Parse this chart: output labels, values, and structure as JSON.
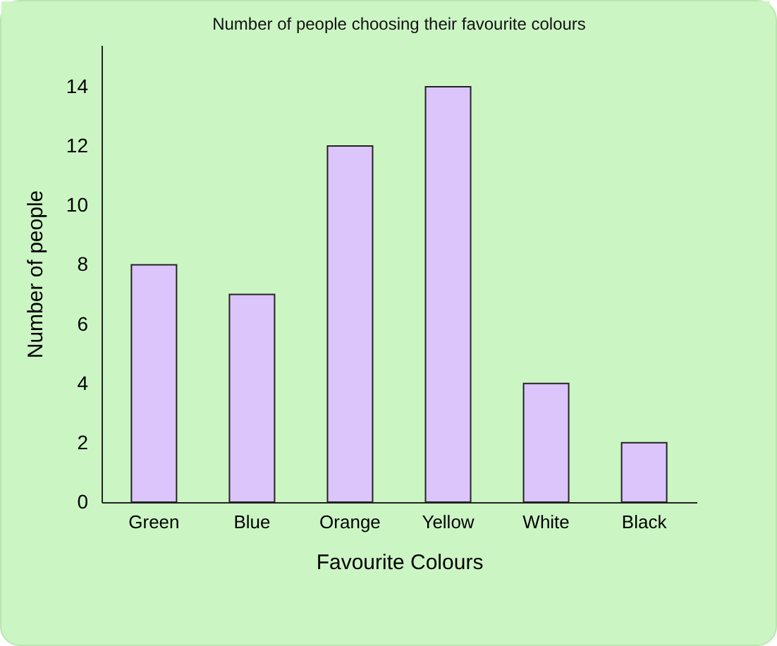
{
  "chart_data": {
    "type": "bar",
    "title": "Number of people choosing their favourite colours",
    "xlabel": "Favourite Colours",
    "ylabel": "Number of people",
    "categories": [
      "Green",
      "Blue",
      "Orange",
      "Yellow",
      "White",
      "Black"
    ],
    "values": [
      8,
      7,
      12,
      14,
      4,
      2
    ],
    "color": "#dcc5fb",
    "ylim": [
      0,
      15.4
    ],
    "yticks": [
      0,
      2,
      4,
      6,
      8,
      10,
      12,
      14
    ],
    "grid": false
  }
}
